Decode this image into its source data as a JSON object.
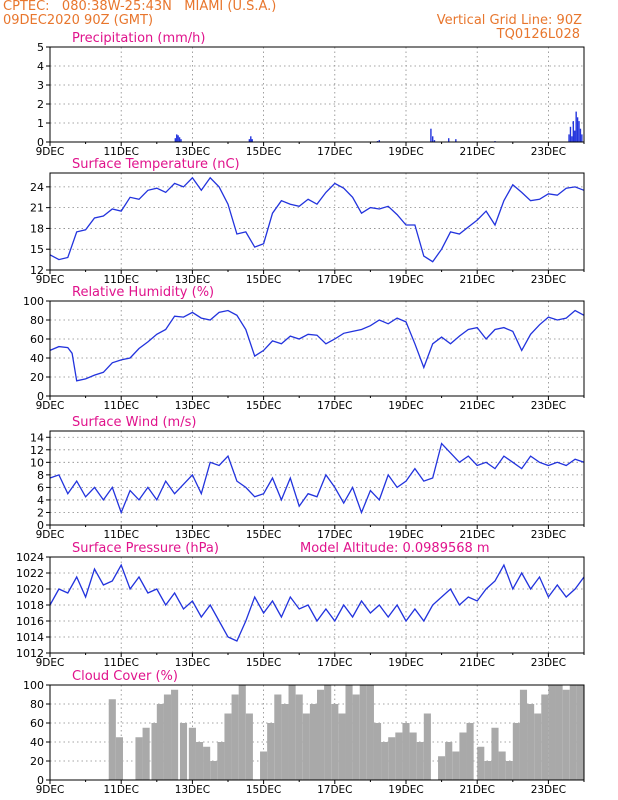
{
  "header": {
    "line1": "CPTEC:   080:38W-25:43N   MIAMI (U.S.A.)",
    "line2": "09DEC2020 90Z (GMT)",
    "right1": "Vertical Grid Line: 90Z",
    "right2": "TQ0126L028"
  },
  "colors": {
    "header": "#e8762d",
    "title": "#e0138c",
    "line": "#2233dd",
    "cloud": "#a9a9a9"
  },
  "x_axis": {
    "ticks": [
      "9DEC",
      "11DEC",
      "13DEC",
      "15DEC",
      "17DEC",
      "19DEC",
      "21DEC",
      "23DEC"
    ],
    "range_days": [
      0,
      15
    ]
  },
  "chart_data": [
    {
      "type": "bar",
      "title": "Precipitation (mm/h)",
      "ylim": [
        0,
        5
      ],
      "yticks": [
        0,
        1,
        2,
        3,
        4,
        5
      ],
      "x": [
        3.52,
        3.56,
        3.6,
        3.64,
        3.68,
        5.6,
        5.64,
        5.68,
        9.2,
        9.25,
        10.7,
        10.75,
        10.8,
        11.2,
        11.4,
        12.5,
        14.58,
        14.62,
        14.66,
        14.7,
        14.74,
        14.78,
        14.82,
        14.86,
        14.9,
        14.94
      ],
      "values": [
        0.2,
        0.4,
        0.35,
        0.25,
        0.15,
        0.15,
        0.3,
        0.15,
        0.05,
        0.1,
        0.7,
        0.3,
        0.1,
        0.2,
        0.15,
        0.05,
        0.4,
        0.8,
        0.3,
        1.1,
        0.6,
        1.6,
        1.3,
        1.1,
        0.7,
        0.4
      ]
    },
    {
      "type": "line",
      "title": "Surface Temperature (nC)",
      "ylim": [
        12,
        26
      ],
      "yticks": [
        12,
        15,
        18,
        21,
        24
      ],
      "x": [
        0,
        0.25,
        0.5,
        0.75,
        1,
        1.25,
        1.5,
        1.75,
        2,
        2.25,
        2.5,
        2.75,
        3,
        3.25,
        3.5,
        3.75,
        4,
        4.25,
        4.5,
        4.75,
        5,
        5.25,
        5.5,
        5.75,
        6,
        6.25,
        6.5,
        6.75,
        7,
        7.25,
        7.5,
        7.75,
        8,
        8.25,
        8.5,
        8.75,
        9,
        9.25,
        9.5,
        9.75,
        10,
        10.25,
        10.5,
        10.75,
        11,
        11.25,
        11.5,
        11.75,
        12,
        12.25,
        12.5,
        12.75,
        13,
        13.25,
        13.5,
        13.75,
        14,
        14.25,
        14.5,
        14.75,
        15
      ],
      "values": [
        14.2,
        13.5,
        13.8,
        17.5,
        17.8,
        19.5,
        19.8,
        20.8,
        20.5,
        22.5,
        22.2,
        23.5,
        23.8,
        23.2,
        24.5,
        24,
        25.3,
        23.5,
        25.3,
        24,
        21.5,
        17.2,
        17.5,
        15.3,
        15.8,
        20.2,
        22,
        21.5,
        21.2,
        22.2,
        21.5,
        23.2,
        24.5,
        23.8,
        22.5,
        20.2,
        21,
        20.8,
        21.2,
        20,
        18.5,
        18.5,
        14,
        13.2,
        15,
        17.5,
        17.2,
        18.2,
        19.2,
        20.5,
        18.5,
        22,
        24.3,
        23.2,
        22,
        22.2,
        23,
        22.8,
        23.8,
        24,
        23.5
      ]
    },
    {
      "type": "line",
      "title": "Relative Humidity (%)",
      "ylim": [
        0,
        100
      ],
      "yticks": [
        0,
        20,
        40,
        60,
        80,
        100
      ],
      "x": [
        0,
        0.25,
        0.5,
        0.62,
        0.75,
        1,
        1.25,
        1.5,
        1.75,
        2,
        2.25,
        2.5,
        2.75,
        3,
        3.25,
        3.5,
        3.75,
        4,
        4.25,
        4.5,
        4.75,
        5,
        5.25,
        5.5,
        5.75,
        6,
        6.25,
        6.5,
        6.75,
        7,
        7.25,
        7.5,
        7.75,
        8,
        8.25,
        8.5,
        8.75,
        9,
        9.25,
        9.5,
        9.75,
        10,
        10.25,
        10.5,
        10.75,
        11,
        11.25,
        11.5,
        11.75,
        12,
        12.25,
        12.5,
        12.75,
        13,
        13.25,
        13.5,
        13.75,
        14,
        14.25,
        14.5,
        14.75,
        15
      ],
      "values": [
        48,
        52,
        51,
        45,
        16,
        18,
        22,
        25,
        35,
        38,
        40,
        50,
        57,
        65,
        70,
        84,
        83,
        88,
        82,
        80,
        88,
        90,
        85,
        70,
        42,
        48,
        58,
        55,
        63,
        60,
        65,
        64,
        55,
        60,
        66,
        68,
        70,
        74,
        80,
        76,
        82,
        78,
        55,
        30,
        55,
        62,
        55,
        63,
        70,
        72,
        60,
        70,
        72,
        68,
        48,
        65,
        75,
        83,
        80,
        82,
        90,
        85
      ]
    },
    {
      "type": "line",
      "title": "Surface Wind (m/s)",
      "ylim": [
        0,
        15
      ],
      "yticks": [
        0,
        2,
        4,
        6,
        8,
        10,
        12,
        14
      ],
      "x": [
        0,
        0.25,
        0.5,
        0.75,
        1,
        1.25,
        1.5,
        1.75,
        2,
        2.25,
        2.5,
        2.75,
        3,
        3.25,
        3.5,
        3.75,
        4,
        4.25,
        4.5,
        4.75,
        5,
        5.25,
        5.5,
        5.75,
        6,
        6.25,
        6.5,
        6.75,
        7,
        7.25,
        7.5,
        7.75,
        8,
        8.25,
        8.5,
        8.75,
        9,
        9.25,
        9.5,
        9.75,
        10,
        10.25,
        10.5,
        10.75,
        11,
        11.25,
        11.5,
        11.75,
        12,
        12.25,
        12.5,
        12.75,
        13,
        13.25,
        13.5,
        13.75,
        14,
        14.25,
        14.5,
        14.75,
        15
      ],
      "values": [
        7.5,
        8,
        5,
        7,
        4.5,
        6,
        4,
        6,
        2,
        5.5,
        4,
        6,
        4,
        7,
        5,
        6.5,
        8,
        5,
        10,
        9.5,
        11,
        7,
        6,
        4.5,
        5,
        7.5,
        4,
        7.5,
        3,
        5,
        4.5,
        8,
        6,
        3.5,
        6,
        2,
        5.5,
        4,
        8,
        6,
        7,
        9,
        7,
        7.5,
        13,
        11.5,
        10,
        11,
        9.5,
        10,
        9,
        11,
        10,
        9,
        11,
        10,
        9.5,
        10,
        9.5,
        10.5,
        10
      ]
    },
    {
      "type": "line",
      "title": "Surface Pressure (hPa)",
      "subtitle": "Model Altitude: 0.0989568 m",
      "ylim": [
        1012,
        1024
      ],
      "yticks": [
        1012,
        1014,
        1016,
        1018,
        1020,
        1022,
        1024
      ],
      "x": [
        0,
        0.25,
        0.5,
        0.75,
        1,
        1.25,
        1.5,
        1.75,
        2,
        2.25,
        2.5,
        2.75,
        3,
        3.25,
        3.5,
        3.75,
        4,
        4.25,
        4.5,
        4.75,
        5,
        5.25,
        5.5,
        5.75,
        6,
        6.25,
        6.5,
        6.75,
        7,
        7.25,
        7.5,
        7.75,
        8,
        8.25,
        8.5,
        8.75,
        9,
        9.25,
        9.5,
        9.75,
        10,
        10.25,
        10.5,
        10.75,
        11,
        11.25,
        11.5,
        11.75,
        12,
        12.25,
        12.5,
        12.75,
        13,
        13.25,
        13.5,
        13.75,
        14,
        14.25,
        14.5,
        14.75,
        15
      ],
      "values": [
        1018,
        1020,
        1019.5,
        1021.5,
        1019,
        1022.5,
        1020.5,
        1021,
        1023,
        1020,
        1021.5,
        1019.5,
        1020,
        1018,
        1019.5,
        1017.5,
        1018.5,
        1016.5,
        1018,
        1016,
        1014,
        1013.5,
        1016,
        1019,
        1017,
        1018.5,
        1016.5,
        1019,
        1017.5,
        1018,
        1016,
        1017.5,
        1016,
        1018,
        1016.5,
        1018.5,
        1017,
        1018,
        1016.5,
        1018,
        1016,
        1017.5,
        1016,
        1018,
        1019,
        1020,
        1018,
        1019,
        1018.5,
        1020,
        1021,
        1023,
        1020,
        1022,
        1020,
        1021.5,
        1019,
        1020.5,
        1019,
        1020,
        1021.5
      ]
    },
    {
      "type": "bar",
      "title": "Cloud Cover (%)",
      "ylim": [
        0,
        100
      ],
      "yticks": [
        0,
        20,
        40,
        60,
        80,
        100
      ],
      "x": [
        1.75,
        1.95,
        2.5,
        2.7,
        2.95,
        3.1,
        3.3,
        3.5,
        3.75,
        4,
        4.2,
        4.4,
        4.6,
        4.8,
        5,
        5.2,
        5.4,
        5.6,
        6,
        6.2,
        6.4,
        6.6,
        6.8,
        7,
        7.2,
        7.4,
        7.6,
        7.8,
        8,
        8.2,
        8.4,
        8.6,
        8.8,
        9,
        9.2,
        9.4,
        9.6,
        9.8,
        10,
        10.2,
        10.4,
        10.6,
        11,
        11.2,
        11.4,
        11.6,
        11.8,
        12.1,
        12.3,
        12.5,
        12.7,
        12.9,
        13.1,
        13.3,
        13.5,
        13.7,
        13.9,
        14.1,
        14.3,
        14.5,
        14.7,
        14.9
      ],
      "values": [
        85,
        45,
        45,
        55,
        60,
        80,
        90,
        95,
        60,
        55,
        40,
        35,
        20,
        40,
        70,
        90,
        100,
        70,
        30,
        60,
        90,
        80,
        100,
        90,
        70,
        80,
        95,
        100,
        80,
        70,
        100,
        90,
        100,
        100,
        60,
        40,
        45,
        50,
        60,
        50,
        40,
        70,
        25,
        40,
        30,
        50,
        60,
        35,
        20,
        55,
        30,
        20,
        60,
        95,
        80,
        70,
        90,
        100,
        100,
        95,
        100,
        100
      ]
    }
  ]
}
